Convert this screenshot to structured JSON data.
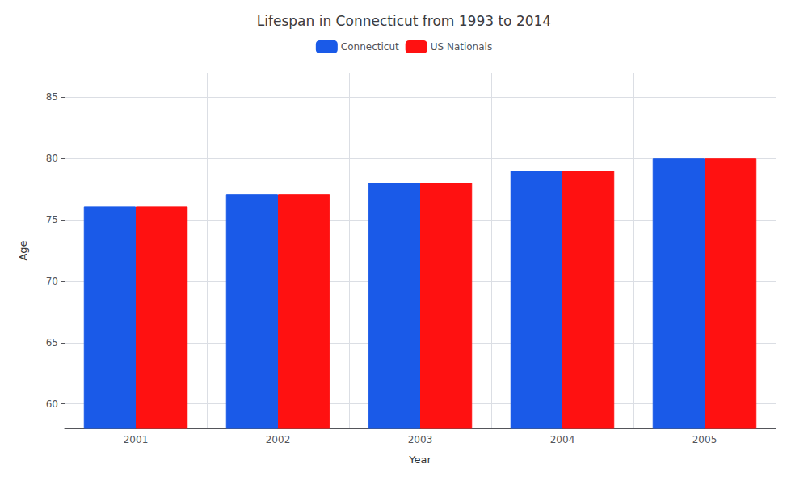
{
  "chart_data": {
    "type": "bar",
    "title": "Lifespan in Connecticut from 1993 to 2014",
    "xlabel": "Year",
    "ylabel": "Age",
    "categories": [
      "2001",
      "2002",
      "2003",
      "2004",
      "2005"
    ],
    "series": [
      {
        "name": "Connecticut",
        "color": "#1a5ae8",
        "values": [
          76.1,
          77.1,
          78.0,
          79.0,
          80.0
        ]
      },
      {
        "name": "US Nationals",
        "color": "#ff1111",
        "values": [
          76.1,
          77.1,
          78.0,
          79.0,
          80.0
        ]
      }
    ],
    "ylim": [
      58,
      87
    ],
    "yticks": [
      60,
      65,
      70,
      75,
      80,
      85
    ],
    "grid": true,
    "legend": "top"
  }
}
